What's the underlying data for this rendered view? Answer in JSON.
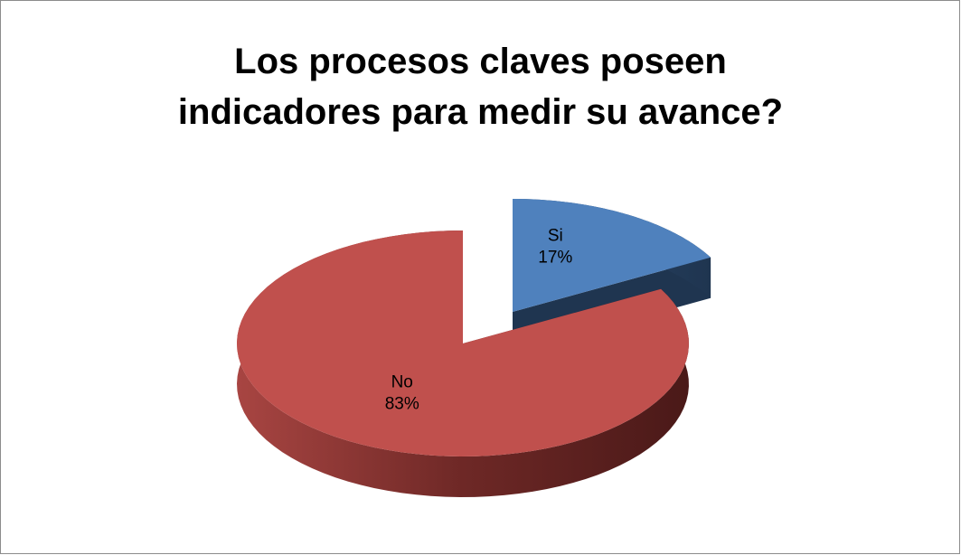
{
  "chart_data": {
    "type": "pie",
    "title": "Los procesos claves poseen indicadores para medir su avance?",
    "categories": [
      "Si",
      "No"
    ],
    "values": [
      17,
      83
    ],
    "value_labels": [
      "17%",
      "83%"
    ],
    "colors": [
      "#4f81bd",
      "#c0504d"
    ],
    "explode": [
      true,
      false
    ]
  }
}
